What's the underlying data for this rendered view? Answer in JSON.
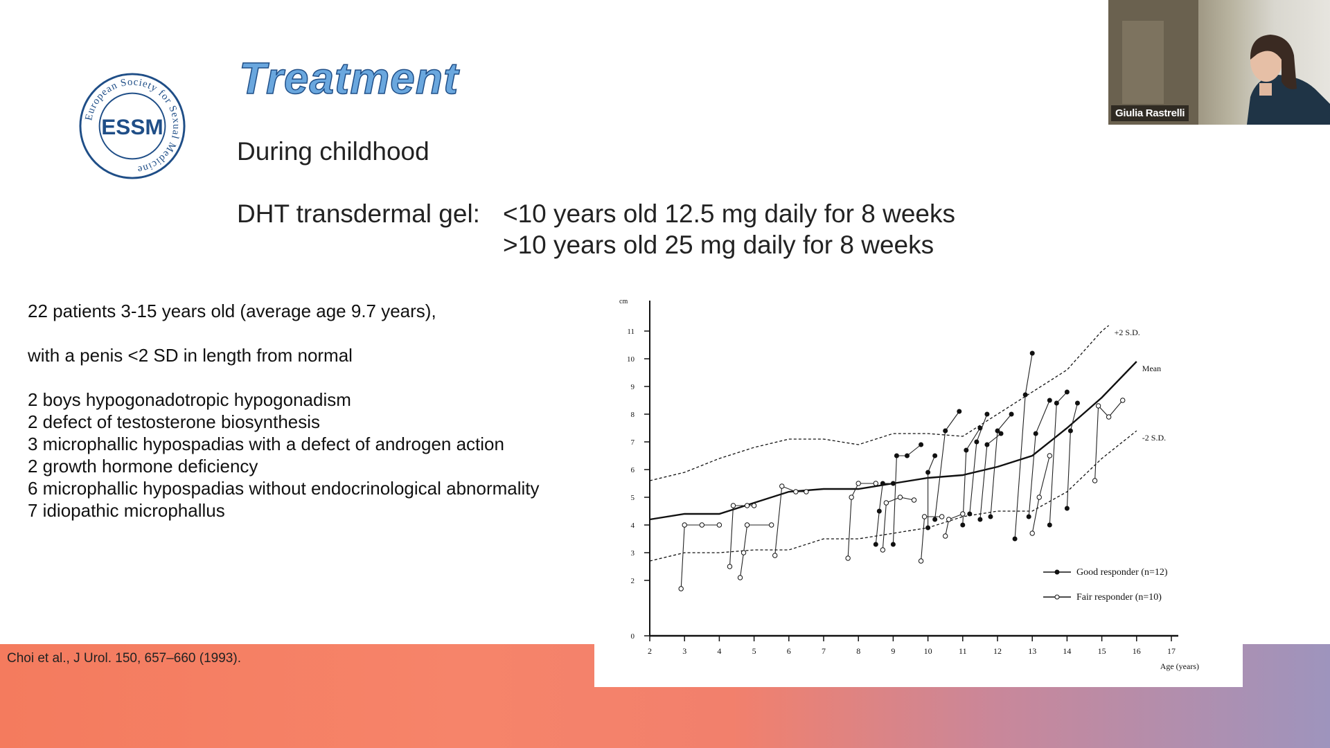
{
  "slide": {
    "logo_text": "European Society for Sexual Medicine",
    "logo_initials": "ESSM",
    "title": "Treatment",
    "subtitle": "During childhood",
    "dht_label": "DHT transdermal gel:",
    "dose_lines": [
      "<10 years old 12.5 mg daily for 8 weeks",
      ">10 years old 25 mg daily for 8 weeks"
    ],
    "info_lines": [
      "22 patients 3-15 years old (average age 9.7 years),",
      "with a penis <2 SD in length from normal",
      "2 boys hypogonadotropic hypogonadism",
      "2 defect of testosterone biosynthesis",
      "3 microphallic hypospadias with a defect of androgen action",
      "2 growth hormone deficiency",
      "6 microphallic hypospadias without endocrinological abnormality",
      "7 idiopathic microphallus"
    ],
    "citation": "Choi et al., J Urol. 150, 657–660 (1993)."
  },
  "webcam": {
    "participant_name": "Giulia Rastrelli"
  },
  "colors": {
    "title_fill": "#6aa7de",
    "title_outline": "#1f4e87",
    "logo_blue": "#1f4e87",
    "band_start": "#f47b5e",
    "band_end": "#9e94bd"
  },
  "chart_data": {
    "type": "line",
    "y_unit": "cm",
    "xlabel": "Age (years)",
    "x_ticks": [
      2,
      3,
      4,
      5,
      6,
      7,
      8,
      9,
      10,
      11,
      12,
      13,
      14,
      15,
      16,
      17
    ],
    "x_tick_labels": [
      "2",
      "3",
      "4",
      "5",
      "6",
      "7",
      "8",
      "9",
      "10",
      "11",
      "12",
      "13",
      "14",
      "15",
      "16",
      "17"
    ],
    "y_ticks": [
      0,
      2,
      3,
      4,
      5,
      6,
      7,
      8,
      9,
      10,
      11
    ],
    "xlim": [
      2,
      17
    ],
    "ylim": [
      0,
      11.8
    ],
    "reference_lines": [
      {
        "label": "+2 S.D.",
        "style": "dashed",
        "points": [
          [
            2,
            5.6
          ],
          [
            3,
            5.9
          ],
          [
            4,
            6.4
          ],
          [
            5,
            6.8
          ],
          [
            6,
            7.1
          ],
          [
            7,
            7.1
          ],
          [
            8,
            6.9
          ],
          [
            9,
            7.3
          ],
          [
            10,
            7.3
          ],
          [
            11,
            7.2
          ],
          [
            12,
            8.0
          ],
          [
            13,
            8.8
          ],
          [
            14,
            9.6
          ],
          [
            15,
            11.0
          ],
          [
            15.2,
            11.2
          ]
        ]
      },
      {
        "label": "Mean",
        "style": "solid",
        "points": [
          [
            2,
            4.2
          ],
          [
            3,
            4.4
          ],
          [
            4,
            4.4
          ],
          [
            5,
            4.8
          ],
          [
            6,
            5.2
          ],
          [
            7,
            5.3
          ],
          [
            8,
            5.3
          ],
          [
            9,
            5.5
          ],
          [
            10,
            5.7
          ],
          [
            11,
            5.8
          ],
          [
            12,
            6.1
          ],
          [
            13,
            6.5
          ],
          [
            14,
            7.5
          ],
          [
            15,
            8.6
          ],
          [
            16,
            9.9
          ]
        ]
      },
      {
        "label": "-2 S.D.",
        "style": "dashed",
        "points": [
          [
            2,
            2.7
          ],
          [
            3,
            3.0
          ],
          [
            4,
            3.0
          ],
          [
            5,
            3.1
          ],
          [
            6,
            3.1
          ],
          [
            7,
            3.5
          ],
          [
            8,
            3.5
          ],
          [
            9,
            3.7
          ],
          [
            10,
            3.9
          ],
          [
            11,
            4.3
          ],
          [
            12,
            4.5
          ],
          [
            13,
            4.5
          ],
          [
            14,
            5.2
          ],
          [
            15,
            6.4
          ],
          [
            16,
            7.4
          ]
        ]
      }
    ],
    "series": [
      {
        "name": "Good responder (n=12)",
        "marker": "filled",
        "segments": [
          [
            [
              8.5,
              3.3
            ],
            [
              8.6,
              4.5
            ],
            [
              8.7,
              5.5
            ],
            [
              9.0,
              5.5
            ]
          ],
          [
            [
              9.0,
              3.3
            ],
            [
              9.1,
              6.5
            ],
            [
              9.4,
              6.5
            ],
            [
              9.8,
              6.9
            ]
          ],
          [
            [
              10.0,
              3.9
            ],
            [
              10.0,
              5.9
            ],
            [
              10.2,
              6.5
            ]
          ],
          [
            [
              10.2,
              4.2
            ],
            [
              10.5,
              7.4
            ],
            [
              10.9,
              8.1
            ]
          ],
          [
            [
              11.0,
              4.0
            ],
            [
              11.1,
              6.7
            ],
            [
              11.5,
              7.5
            ]
          ],
          [
            [
              11.2,
              4.4
            ],
            [
              11.4,
              7.0
            ],
            [
              11.7,
              8.0
            ]
          ],
          [
            [
              11.5,
              4.2
            ],
            [
              11.7,
              6.9
            ],
            [
              12.1,
              7.3
            ]
          ],
          [
            [
              11.8,
              4.3
            ],
            [
              12.0,
              7.4
            ],
            [
              12.4,
              8.0
            ]
          ],
          [
            [
              12.5,
              3.5
            ],
            [
              12.8,
              8.7
            ],
            [
              13.0,
              10.2
            ]
          ],
          [
            [
              12.9,
              4.3
            ],
            [
              13.1,
              7.3
            ],
            [
              13.5,
              8.5
            ]
          ],
          [
            [
              13.5,
              4.0
            ],
            [
              13.7,
              8.4
            ],
            [
              14.0,
              8.8
            ]
          ],
          [
            [
              14.0,
              4.6
            ],
            [
              14.1,
              7.4
            ],
            [
              14.3,
              8.4
            ]
          ]
        ]
      },
      {
        "name": "Fair responder (n=10)",
        "marker": "open",
        "segments": [
          [
            [
              2.9,
              1.7
            ],
            [
              3.0,
              4.0
            ],
            [
              3.5,
              4.0
            ],
            [
              4.0,
              4.0
            ]
          ],
          [
            [
              4.3,
              2.5
            ],
            [
              4.4,
              4.7
            ],
            [
              4.8,
              4.7
            ],
            [
              5.0,
              4.7
            ]
          ],
          [
            [
              4.6,
              2.1
            ],
            [
              4.7,
              3.0
            ],
            [
              4.8,
              4.0
            ],
            [
              5.5,
              4.0
            ]
          ],
          [
            [
              5.6,
              2.9
            ],
            [
              5.8,
              5.4
            ],
            [
              6.2,
              5.2
            ],
            [
              6.5,
              5.2
            ]
          ],
          [
            [
              7.7,
              2.8
            ],
            [
              7.8,
              5.0
            ],
            [
              8.0,
              5.5
            ],
            [
              8.5,
              5.5
            ]
          ],
          [
            [
              8.7,
              3.1
            ],
            [
              8.8,
              4.8
            ],
            [
              9.2,
              5.0
            ],
            [
              9.6,
              4.9
            ]
          ],
          [
            [
              9.8,
              2.7
            ],
            [
              9.9,
              4.3
            ],
            [
              10.4,
              4.3
            ]
          ],
          [
            [
              10.5,
              3.6
            ],
            [
              10.6,
              4.2
            ],
            [
              11.0,
              4.4
            ]
          ],
          [
            [
              13.0,
              3.7
            ],
            [
              13.2,
              5.0
            ],
            [
              13.5,
              6.5
            ]
          ],
          [
            [
              14.8,
              5.6
            ],
            [
              14.9,
              8.3
            ],
            [
              15.2,
              7.9
            ],
            [
              15.6,
              8.5
            ]
          ]
        ]
      }
    ],
    "legend_position": "bottom-right",
    "grid": false
  }
}
